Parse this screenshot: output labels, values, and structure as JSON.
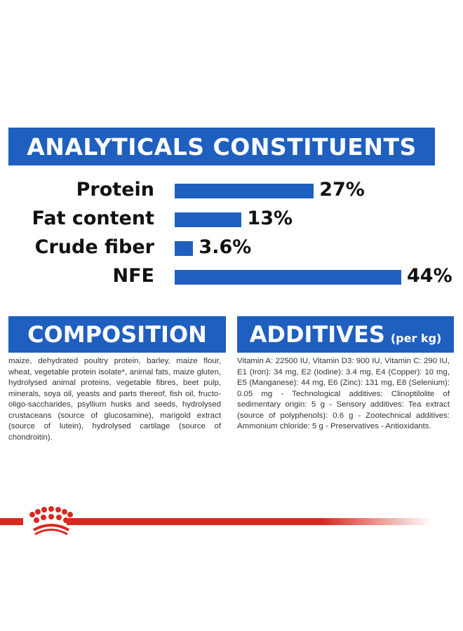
{
  "header": {
    "title": "ANALYTICALS CONSTITUENTS"
  },
  "chart_data": {
    "type": "bar",
    "orientation": "horizontal",
    "title": "ANALYTICALS CONSTITUENTS",
    "categories": [
      "Protein",
      "Fat content",
      "Crude fiber",
      "NFE"
    ],
    "values": [
      27,
      13,
      3.6,
      44
    ],
    "value_labels": [
      "27%",
      "13%",
      "3.6%",
      "44%"
    ],
    "unit": "%",
    "xlim": [
      0,
      44
    ],
    "grid": false,
    "bar_color": "#1f5fbf"
  },
  "composition": {
    "title": "COMPOSITION",
    "text": "maize, dehydrated poultry protein, barley, maize flour, wheat, vegetable protein isolate*, animal fats, maize gluten, hydrolysed animal proteins, vegetable fibres, beet pulp, minerals, soya oil, yeasts and parts thereof, fish oil, fructo-oligo-saccharides, psyllium husks and seeds, hydrolysed crustaceans (source of glucosamine), marigold extract (source of lutein), hydrolysed cartilage (source of chondroitin)."
  },
  "additives": {
    "title": "ADDITIVES",
    "unit": "(per kg)",
    "text": "Vitamin A: 22500 IU, Vitamin D3: 900 IU, Vitamin C: 290 IU, E1 (Iron): 34 mg, E2 (Iodine): 3.4 mg, E4 (Copper): 10 mg, E5 (Manganese): 44 mg, E6 (Zinc): 131 mg, E8 (Selenium): 0.05 mg - Technological additives: Clinoptilolite of sedimentary origin: 5 g - Sensory additives: Tea extract (source of polyphenols): 0.6 g - Zootechnical additives: Ammonium chloride: 5 g - Preservatives - Antioxidants."
  },
  "colors": {
    "brand_blue": "#1f5fbf",
    "brand_red": "#d8291f"
  },
  "logo": {
    "icon": "crown-icon"
  }
}
